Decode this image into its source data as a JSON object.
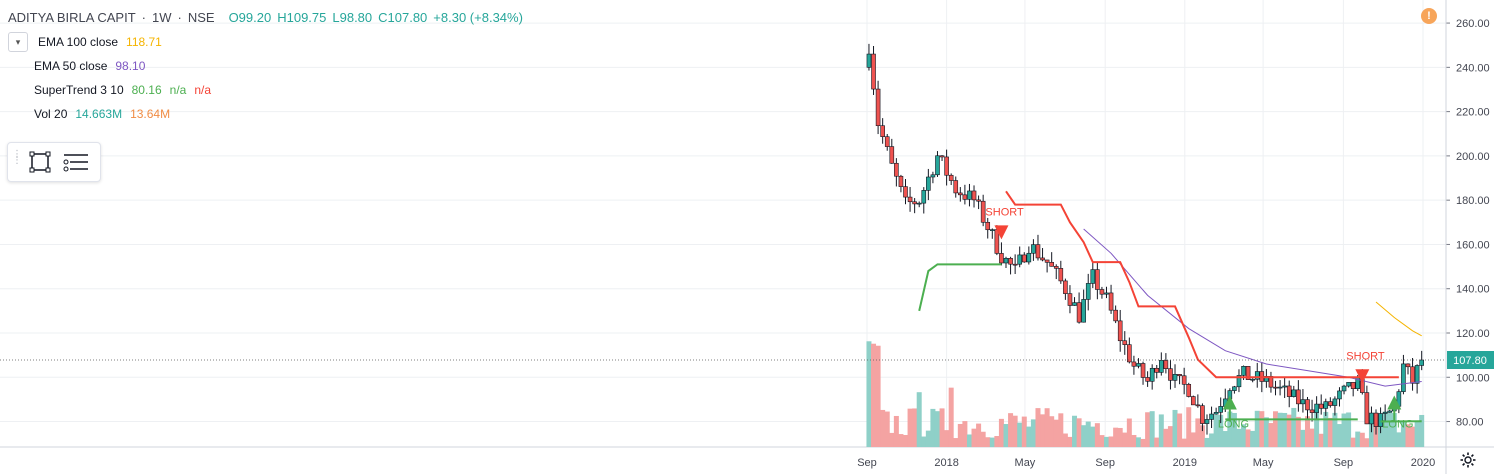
{
  "legend": {
    "symbol": "ADITYA BIRLA CAPIT",
    "interval": "1W",
    "exchange": "NSE",
    "sep": "·",
    "open": "O99.20",
    "high": "H109.75",
    "low": "L98.80",
    "close": "C107.80",
    "change": "+8.30 (+8.34%)",
    "change_color": "#26a69a",
    "chevron_icon": "chevron-down-icon",
    "indicators": [
      {
        "name": "EMA 100 close",
        "values": [
          "118.71"
        ],
        "colors": [
          "#f5b400"
        ]
      },
      {
        "name": "EMA 50 close",
        "values": [
          "98.10"
        ],
        "colors": [
          "#7e57c2"
        ]
      },
      {
        "name": "SuperTrend 3 10",
        "values": [
          "80.16",
          "n/a",
          "n/a"
        ],
        "colors": [
          "#4caf50",
          "#4caf50",
          "#f44336"
        ]
      },
      {
        "name": "Vol 20",
        "values": [
          "14.663M",
          "13.64M"
        ],
        "colors": [
          "#26a69a",
          "#f08c44"
        ]
      }
    ]
  },
  "toolbox": {
    "icons": [
      "rectangle-select-icon",
      "settings-lines-icon"
    ]
  },
  "alert": {
    "icon": "alert-icon",
    "text": "!"
  },
  "price_label": {
    "value": "107.80",
    "color": "#26a69a"
  },
  "colors": {
    "up": "#26a69a",
    "down": "#ef5350",
    "supertrend_up": "#4caf50",
    "supertrend_down": "#f44336",
    "ema100": "#f5b400",
    "ema50": "#7e57c2",
    "grid": "#eef0f3",
    "vol_up": "#8fd0c8",
    "vol_down": "#f4a3a2"
  },
  "chart_data": {
    "type": "line",
    "title": "ADITYA BIRLA CAPIT · 1W · NSE",
    "y_ticks": [
      "260.00",
      "240.00",
      "220.00",
      "200.00",
      "180.00",
      "160.00",
      "140.00",
      "120.00",
      "100.00",
      "80.00"
    ],
    "y_tick_values": [
      260,
      240,
      220,
      200,
      180,
      160,
      140,
      120,
      100,
      80
    ],
    "ylim": [
      68.5,
      265
    ],
    "x_ticks": [
      "Sep",
      "2018",
      "May",
      "Sep",
      "2019",
      "May",
      "Sep",
      "2020"
    ],
    "x_tick_dates": [
      "2017-09-01",
      "2018-01-01",
      "2018-05-01",
      "2018-09-01",
      "2019-01-01",
      "2019-05-01",
      "2019-09-01",
      "2020-01-01"
    ],
    "series": [
      {
        "name": "EMA 100 close",
        "points": [
          [
            "2019-10-21",
            134
          ],
          [
            "2019-11-18",
            127
          ],
          [
            "2019-12-16",
            121
          ],
          [
            "2019-12-30",
            118.71
          ]
        ]
      },
      {
        "name": "EMA 50 close",
        "points": [
          [
            "2018-07-30",
            167
          ],
          [
            "2018-09-10",
            156
          ],
          [
            "2018-11-05",
            137
          ],
          [
            "2019-01-07",
            122
          ],
          [
            "2019-03-04",
            112
          ],
          [
            "2019-05-06",
            106
          ],
          [
            "2019-07-08",
            103
          ],
          [
            "2019-09-09",
            100
          ],
          [
            "2019-11-04",
            96
          ],
          [
            "2019-12-30",
            98.1
          ]
        ]
      },
      {
        "name": "SuperTrend 3 10",
        "segments": [
          {
            "trend": "up",
            "points": [
              [
                "2017-11-20",
                130
              ],
              [
                "2017-12-04",
                148
              ],
              [
                "2017-12-18",
                151
              ],
              [
                "2018-03-26",
                151
              ]
            ]
          },
          {
            "trend": "down",
            "points": [
              [
                "2018-04-02",
                184
              ],
              [
                "2018-04-16",
                178
              ],
              [
                "2018-06-25",
                178
              ],
              [
                "2018-07-09",
                170
              ],
              [
                "2018-07-30",
                161
              ],
              [
                "2018-08-13",
                152
              ],
              [
                "2018-09-24",
                152
              ],
              [
                "2018-10-08",
                143
              ],
              [
                "2018-10-22",
                132
              ],
              [
                "2018-12-17",
                132
              ],
              [
                "2019-01-07",
                118
              ],
              [
                "2019-01-21",
                108
              ],
              [
                "2019-02-18",
                100
              ],
              [
                "2019-09-30",
                100
              ]
            ]
          },
          {
            "trend": "up",
            "points": [
              [
                "2019-03-04",
                81
              ],
              [
                "2019-09-23",
                81
              ]
            ]
          },
          {
            "trend": "down",
            "points": [
              [
                "2019-09-30",
                100
              ],
              [
                "2019-11-25",
                100
              ]
            ]
          },
          {
            "trend": "up",
            "points": [
              [
                "2019-10-28",
                80
              ],
              [
                "2019-12-30",
                80.16
              ]
            ]
          }
        ]
      }
    ],
    "annotations": [
      {
        "text": "SHORT",
        "type": "short",
        "date": "2018-03-26",
        "price": 165
      },
      {
        "text": "LONG",
        "type": "long",
        "date": "2019-03-11",
        "price": 80
      },
      {
        "text": "SHORT",
        "type": "short",
        "date": "2019-09-30",
        "price": 100
      },
      {
        "text": "LONG",
        "type": "long",
        "date": "2019-11-18",
        "price": 80
      }
    ],
    "last_price": 107.8,
    "candles_note": "weekly OHLC candles estimated from chart",
    "candle_anchors": [
      [
        "2017-09-04",
        250
      ],
      [
        "2017-09-18",
        215
      ],
      [
        "2017-10-09",
        195
      ],
      [
        "2017-10-30",
        178
      ],
      [
        "2017-11-20",
        180
      ],
      [
        "2017-12-18",
        200
      ],
      [
        "2018-01-15",
        185
      ],
      [
        "2018-02-12",
        180
      ],
      [
        "2018-03-05",
        168
      ],
      [
        "2018-03-26",
        155
      ],
      [
        "2018-04-16",
        148
      ],
      [
        "2018-05-07",
        160
      ],
      [
        "2018-06-04",
        152
      ],
      [
        "2018-07-02",
        140
      ],
      [
        "2018-07-23",
        128
      ],
      [
        "2018-08-13",
        145
      ],
      [
        "2018-09-03",
        135
      ],
      [
        "2018-09-24",
        118
      ],
      [
        "2018-10-15",
        105
      ],
      [
        "2018-11-05",
        98
      ],
      [
        "2018-11-26",
        110
      ],
      [
        "2018-12-17",
        98
      ],
      [
        "2019-01-07",
        95
      ],
      [
        "2019-01-28",
        82
      ],
      [
        "2019-02-18",
        85
      ],
      [
        "2019-03-11",
        97
      ],
      [
        "2019-04-01",
        101
      ],
      [
        "2019-05-06",
        98
      ],
      [
        "2019-06-03",
        93
      ],
      [
        "2019-07-01",
        88
      ],
      [
        "2019-08-05",
        86
      ],
      [
        "2019-09-02",
        93
      ],
      [
        "2019-09-23",
        97
      ],
      [
        "2019-10-07",
        82
      ],
      [
        "2019-10-28",
        80
      ],
      [
        "2019-11-18",
        86
      ],
      [
        "2019-12-02",
        105
      ],
      [
        "2019-12-16",
        98
      ],
      [
        "2019-12-30",
        107.8
      ]
    ]
  }
}
